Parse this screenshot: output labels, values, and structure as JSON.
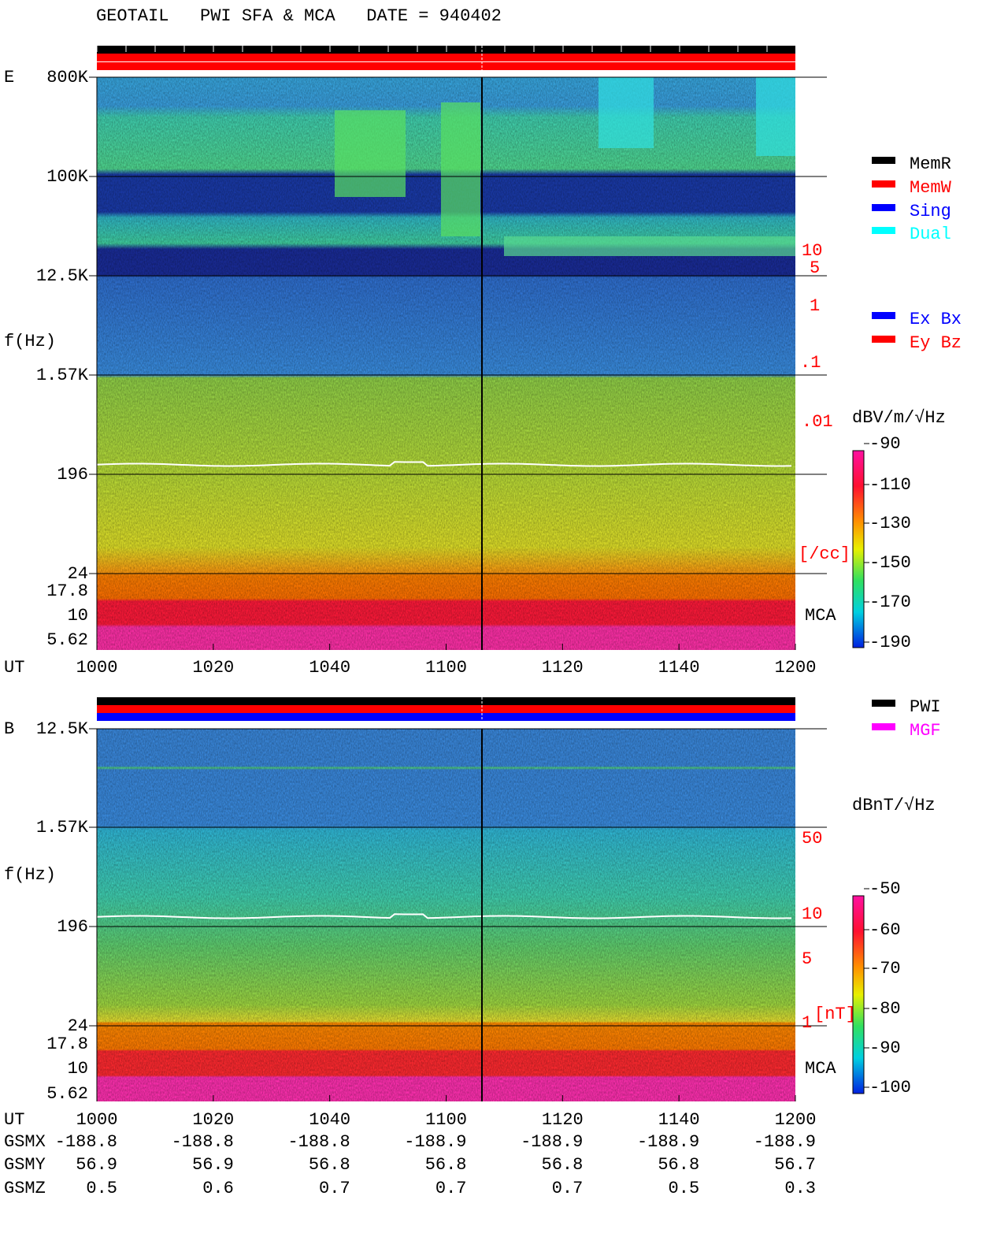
{
  "header": {
    "title": "GEOTAIL   PWI SFA & MCA   DATE = 940402"
  },
  "panels": [
    {
      "label": "E",
      "y_axis_label": "f(Hz)",
      "y_ticks": [
        "800K",
        "100K",
        "12.5K",
        "1.57K",
        "196",
        "24",
        "17.8",
        "10",
        "5.62"
      ],
      "density_labels": [
        "10",
        "5",
        "1",
        ".1",
        ".01",
        "[/cc]"
      ],
      "mca_label": "MCA",
      "x_axis_label": "UT",
      "x_ticks": [
        "1000",
        "1020",
        "1040",
        "1100",
        "1120",
        "1140",
        "1200"
      ],
      "legend": [
        {
          "name": "MemR",
          "color": "#000000"
        },
        {
          "name": "MemW",
          "color": "#ff0000"
        },
        {
          "name": "Sing",
          "color": "#0000ff"
        },
        {
          "name": "Dual",
          "color": "#00ffff"
        }
      ],
      "probe_legend": [
        {
          "name": "Ex Bx",
          "color": "#0000ff"
        },
        {
          "name": "Ey Bz",
          "color": "#ff0000"
        }
      ],
      "colorbar": {
        "label": "dBV/m/√Hz",
        "ticks": [
          "-90",
          "-110",
          "-130",
          "-150",
          "-170",
          "-190"
        ]
      }
    },
    {
      "label": "B",
      "y_axis_label": "f(Hz)",
      "y_ticks": [
        "12.5K",
        "1.57K",
        "196",
        "24",
        "17.8",
        "10",
        "5.62"
      ],
      "density_labels": [
        "50",
        "10",
        "5",
        "1",
        "[nT]"
      ],
      "mca_label": "MCA",
      "x_axis_label": "UT",
      "x_ticks": [
        "1000",
        "1020",
        "1040",
        "1100",
        "1120",
        "1140",
        "1200"
      ],
      "legend": [
        {
          "name": "PWI",
          "color": "#000000"
        },
        {
          "name": "MGF",
          "color": "#ff00ff"
        }
      ],
      "colorbar": {
        "label": "dBnT/√Hz",
        "ticks": [
          "-50",
          "-60",
          "-70",
          "-80",
          "-90",
          "-100"
        ]
      }
    }
  ],
  "orbit": {
    "rows": [
      {
        "label": "GSMX",
        "values": [
          -188.8,
          -188.8,
          -188.8,
          -188.9,
          -188.9,
          -188.9,
          -188.9
        ]
      },
      {
        "label": "GSMY",
        "values": [
          56.9,
          56.9,
          56.8,
          56.8,
          56.8,
          56.8,
          56.7
        ]
      },
      {
        "label": "GSMZ",
        "values": [
          0.5,
          0.6,
          0.7,
          0.7,
          0.7,
          0.5,
          0.3
        ]
      }
    ]
  }
}
